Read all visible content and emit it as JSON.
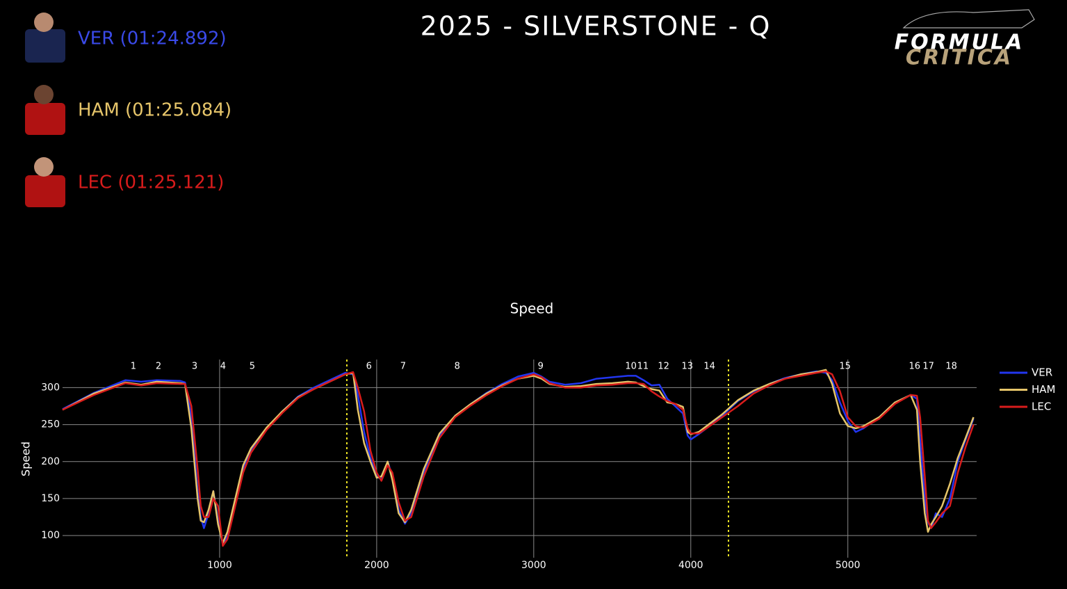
{
  "header": {
    "title": "2025 - SILVERSTONE - Q",
    "logo": {
      "line1": "FORMULA",
      "line2": "CRITICA"
    },
    "drivers": [
      {
        "label": "VER (01:24.892)",
        "color": "#3a4ae8"
      },
      {
        "label": "HAM (01:25.084)",
        "color": "#e6c56a"
      },
      {
        "label": "LEC (01:25.121)",
        "color": "#d81c1c"
      }
    ]
  },
  "chart_data": {
    "type": "line",
    "title": "Speed",
    "y_label": "Speed",
    "x": [
      0,
      200,
      400,
      500,
      600,
      750,
      780,
      820,
      860,
      880,
      900,
      930,
      960,
      990,
      1020,
      1050,
      1100,
      1150,
      1200,
      1300,
      1400,
      1500,
      1600,
      1700,
      1800,
      1850,
      1880,
      1920,
      1960,
      2000,
      2030,
      2070,
      2100,
      2140,
      2180,
      2220,
      2300,
      2400,
      2500,
      2600,
      2700,
      2800,
      2900,
      3000,
      3050,
      3100,
      3200,
      3300,
      3400,
      3500,
      3600,
      3650,
      3700,
      3750,
      3800,
      3850,
      3900,
      3950,
      3980,
      4000,
      4050,
      4100,
      4200,
      4300,
      4400,
      4500,
      4600,
      4700,
      4800,
      4860,
      4900,
      4950,
      5000,
      5050,
      5100,
      5200,
      5300,
      5400,
      5440,
      5460,
      5490,
      5510,
      5530,
      5560,
      5600,
      5650,
      5700,
      5750,
      5800
    ],
    "series": [
      {
        "name": "VER",
        "color": "#2236f0",
        "values": [
          271,
          293,
          310,
          308,
          310,
          309,
          307,
          260,
          160,
          125,
          110,
          130,
          160,
          120,
          88,
          100,
          145,
          190,
          215,
          245,
          268,
          288,
          300,
          310,
          320,
          318,
          290,
          240,
          205,
          180,
          176,
          200,
          180,
          135,
          116,
          130,
          185,
          235,
          262,
          278,
          293,
          305,
          315,
          320,
          315,
          308,
          304,
          306,
          312,
          314,
          316,
          316,
          310,
          303,
          304,
          285,
          275,
          265,
          235,
          230,
          237,
          245,
          262,
          282,
          295,
          305,
          313,
          318,
          322,
          320,
          310,
          280,
          255,
          240,
          245,
          260,
          280,
          290,
          285,
          230,
          150,
          118,
          110,
          130,
          125,
          150,
          200,
          230,
          258
        ]
      },
      {
        "name": "HAM",
        "color": "#e6c56a",
        "values": [
          270,
          292,
          307,
          304,
          308,
          306,
          305,
          245,
          150,
          120,
          118,
          135,
          160,
          115,
          90,
          105,
          150,
          195,
          218,
          246,
          268,
          287,
          298,
          308,
          318,
          320,
          270,
          225,
          200,
          178,
          180,
          200,
          175,
          130,
          118,
          135,
          190,
          238,
          262,
          278,
          292,
          303,
          312,
          316,
          312,
          305,
          301,
          302,
          305,
          306,
          308,
          307,
          302,
          298,
          296,
          280,
          278,
          274,
          240,
          237,
          240,
          248,
          264,
          283,
          296,
          305,
          312,
          318,
          321,
          324,
          305,
          265,
          248,
          245,
          248,
          260,
          280,
          290,
          270,
          200,
          130,
          105,
          115,
          125,
          140,
          170,
          205,
          232,
          260
        ]
      },
      {
        "name": "LEC",
        "color": "#d81c1c",
        "values": [
          270,
          290,
          306,
          303,
          306,
          305,
          305,
          275,
          190,
          140,
          125,
          125,
          150,
          140,
          86,
          95,
          140,
          185,
          212,
          243,
          266,
          286,
          298,
          308,
          318,
          321,
          300,
          268,
          215,
          185,
          174,
          195,
          185,
          145,
          120,
          125,
          180,
          232,
          260,
          276,
          290,
          302,
          312,
          318,
          314,
          306,
          300,
          300,
          303,
          304,
          306,
          306,
          305,
          295,
          288,
          282,
          278,
          270,
          245,
          238,
          238,
          245,
          260,
          275,
          292,
          303,
          312,
          316,
          320,
          322,
          318,
          295,
          260,
          248,
          246,
          258,
          278,
          290,
          289,
          260,
          180,
          120,
          110,
          118,
          130,
          140,
          185,
          220,
          250
        ]
      }
    ],
    "xlim": [
      0,
      5820
    ],
    "ylim": [
      70,
      338
    ],
    "xticks": [
      1000,
      2000,
      3000,
      4000,
      5000
    ],
    "yticks": [
      100,
      150,
      200,
      250,
      300
    ],
    "grid": true,
    "corners": [
      {
        "number": 1,
        "distance": 451
      },
      {
        "number": 2,
        "distance": 611
      },
      {
        "number": 3,
        "distance": 841
      },
      {
        "number": 4,
        "distance": 1022
      },
      {
        "number": 5,
        "distance": 1208
      },
      {
        "number": 6,
        "distance": 1951
      },
      {
        "number": 7,
        "distance": 2168
      },
      {
        "number": 8,
        "distance": 2513
      },
      {
        "number": 9,
        "distance": 3044
      },
      {
        "number": 10,
        "distance": 3619
      },
      {
        "number": 11,
        "distance": 3695
      },
      {
        "number": 12,
        "distance": 3827
      },
      {
        "number": 13,
        "distance": 3978
      },
      {
        "number": 14,
        "distance": 4119
      },
      {
        "number": 15,
        "distance": 4982
      },
      {
        "number": 16,
        "distance": 5425
      },
      {
        "number": 17,
        "distance": 5513
      },
      {
        "number": 18,
        "distance": 5659
      }
    ],
    "sectors": [
      1810,
      4240
    ],
    "sector_color": "#ece224"
  }
}
